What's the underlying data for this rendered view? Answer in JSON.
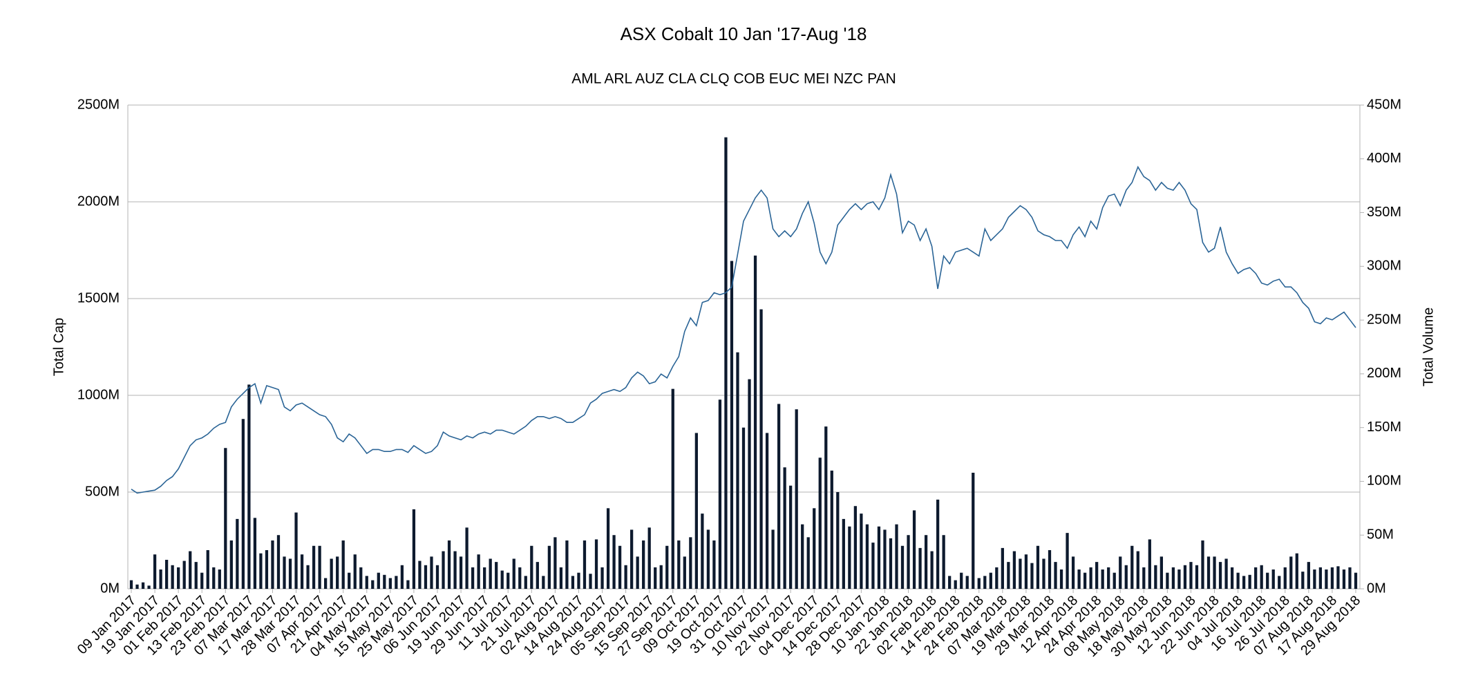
{
  "chart_data": {
    "type": "bar-line",
    "title": "ASX Cobalt 10 Jan '17-Aug '18",
    "subtitle": "AML ARL AUZ CLA CLQ COB EUC MEI NZC PAN",
    "ylabel": "Total Cap",
    "y2label": "Total Volume",
    "grid": true,
    "ylim": [
      0,
      2500
    ],
    "yticks": [
      {
        "value": 0,
        "label": "0M"
      },
      {
        "value": 500,
        "label": "500M"
      },
      {
        "value": 1000,
        "label": "1000M"
      },
      {
        "value": 1500,
        "label": "1500M"
      },
      {
        "value": 2000,
        "label": "2000M"
      },
      {
        "value": 2500,
        "label": "2500M"
      }
    ],
    "y2lim": [
      0,
      450
    ],
    "y2ticks": [
      {
        "value": 0,
        "label": "0M"
      },
      {
        "value": 50,
        "label": "50M"
      },
      {
        "value": 100,
        "label": "100M"
      },
      {
        "value": 150,
        "label": "150M"
      },
      {
        "value": 200,
        "label": "200M"
      },
      {
        "value": 250,
        "label": "250M"
      },
      {
        "value": 300,
        "label": "300M"
      },
      {
        "value": 350,
        "label": "350M"
      },
      {
        "value": 400,
        "label": "400M"
      },
      {
        "value": 450,
        "label": "450M"
      }
    ],
    "categories": [
      "09 Jan 2017",
      null,
      null,
      null,
      "19 Jan 2017",
      null,
      null,
      null,
      "01 Feb 2017",
      null,
      null,
      null,
      "13 Feb 2017",
      null,
      null,
      null,
      "23 Feb 2017",
      null,
      null,
      null,
      "07 Mar 2017",
      null,
      null,
      null,
      "17 Mar 2017",
      null,
      null,
      null,
      "28 Mar 2017",
      null,
      null,
      null,
      "07 Apr 2017",
      null,
      null,
      null,
      "21 Apr 2017",
      null,
      null,
      null,
      "04 May 2017",
      null,
      null,
      null,
      "15 May 2017",
      null,
      null,
      null,
      "25 May 2017",
      null,
      null,
      null,
      "06 Jun 2017",
      null,
      null,
      null,
      "19 Jun 2017",
      null,
      null,
      null,
      "29 Jun 2017",
      null,
      null,
      null,
      "11 Jul 2017",
      null,
      null,
      null,
      "21 Jul 2017",
      null,
      null,
      null,
      "02 Aug 2017",
      null,
      null,
      null,
      "14 Aug 2017",
      null,
      null,
      null,
      "24 Aug 2017",
      null,
      null,
      null,
      "05 Sep 2017",
      null,
      null,
      null,
      "15 Sep 2017",
      null,
      null,
      null,
      "27 Sep 2017",
      null,
      null,
      null,
      "09 Oct 2017",
      null,
      null,
      null,
      "19 Oct 2017",
      null,
      null,
      null,
      "31 Oct 2017",
      null,
      null,
      null,
      "10 Nov 2017",
      null,
      null,
      null,
      "22 Nov 2017",
      null,
      null,
      null,
      "04 Dec 2017",
      null,
      null,
      null,
      "14 Dec 2017",
      null,
      null,
      null,
      "28 Dec 2017",
      null,
      null,
      null,
      "10 Jan 2018",
      null,
      null,
      null,
      "22 Jan 2018",
      null,
      null,
      null,
      "02 Feb 2018",
      null,
      null,
      null,
      "14 Feb 2018",
      null,
      null,
      null,
      "24 Feb 2018",
      null,
      null,
      null,
      "07 Mar 2018",
      null,
      null,
      null,
      "19 Mar 2018",
      null,
      null,
      null,
      "29 Mar 2018",
      null,
      null,
      null,
      "12 Apr 2018",
      null,
      null,
      null,
      "24 Apr 2018",
      null,
      null,
      null,
      "08 May 2018",
      null,
      null,
      null,
      "18 May 2018",
      null,
      null,
      null,
      "30 May 2018",
      null,
      null,
      null,
      "12 Jun 2018",
      null,
      null,
      null,
      "22 Jun 2018",
      null,
      null,
      null,
      "04 Jul 2018",
      null,
      null,
      null,
      "16 Jul 2018",
      null,
      null,
      null,
      "26 Jul 2018",
      null,
      null,
      null,
      "07 Aug 2018",
      null,
      null,
      null,
      "17 Aug 2018",
      null,
      null,
      null,
      "29 Aug 2018"
    ],
    "series": [
      {
        "type": "bar",
        "axis": "y2",
        "color": "#0d1a2e",
        "values": [
          8,
          4,
          6,
          3,
          32,
          18,
          27,
          22,
          20,
          26,
          35,
          25,
          15,
          36,
          20,
          18,
          131,
          45,
          65,
          158,
          190,
          66,
          33,
          36,
          45,
          50,
          30,
          28,
          71,
          32,
          22,
          40,
          40,
          10,
          28,
          30,
          45,
          15,
          32,
          20,
          12,
          8,
          15,
          13,
          10,
          12,
          22,
          8,
          74,
          26,
          22,
          30,
          22,
          35,
          45,
          35,
          30,
          57,
          20,
          32,
          20,
          28,
          25,
          17,
          15,
          28,
          20,
          12,
          40,
          25,
          12,
          40,
          48,
          20,
          45,
          12,
          15,
          45,
          14,
          46,
          20,
          75,
          50,
          40,
          22,
          55,
          30,
          45,
          57,
          20,
          22,
          40,
          186,
          45,
          30,
          48,
          145,
          70,
          55,
          45,
          176,
          420,
          305,
          220,
          150,
          195,
          310,
          260,
          145,
          55,
          172,
          113,
          96,
          167,
          60,
          48,
          75,
          122,
          151,
          110,
          90,
          65,
          58,
          77,
          70,
          60,
          43,
          58,
          55,
          47,
          60,
          40,
          50,
          73,
          38,
          50,
          35,
          83,
          50,
          12,
          8,
          15,
          12,
          108,
          10,
          12,
          15,
          20,
          38,
          25,
          35,
          28,
          32,
          24,
          40,
          28,
          36,
          25,
          18,
          52,
          30,
          18,
          15,
          20,
          25,
          18,
          20,
          15,
          30,
          22,
          40,
          35,
          20,
          46,
          22,
          30,
          15,
          20,
          18,
          22,
          25,
          22,
          45,
          30,
          30,
          25,
          28,
          20,
          15,
          12,
          13,
          20,
          22,
          15,
          18,
          12,
          20,
          30,
          33,
          16,
          25,
          18,
          20,
          18,
          20,
          21,
          18,
          20,
          15
        ]
      },
      {
        "type": "line",
        "axis": "y",
        "color": "#2a6496",
        "values": [
          515,
          495,
          500,
          505,
          510,
          530,
          560,
          580,
          620,
          680,
          740,
          770,
          780,
          800,
          830,
          850,
          860,
          940,
          980,
          1010,
          1040,
          1060,
          960,
          1050,
          1040,
          1030,
          940,
          920,
          950,
          960,
          940,
          920,
          900,
          890,
          850,
          780,
          760,
          800,
          780,
          740,
          700,
          720,
          720,
          710,
          710,
          720,
          720,
          705,
          740,
          720,
          700,
          710,
          740,
          810,
          790,
          780,
          770,
          790,
          780,
          800,
          810,
          800,
          820,
          820,
          810,
          800,
          820,
          840,
          870,
          890,
          890,
          880,
          890,
          880,
          860,
          860,
          880,
          900,
          960,
          980,
          1010,
          1020,
          1030,
          1020,
          1040,
          1090,
          1120,
          1100,
          1060,
          1070,
          1110,
          1090,
          1150,
          1200,
          1330,
          1400,
          1360,
          1480,
          1490,
          1530,
          1520,
          1530,
          1560,
          1730,
          1900,
          1960,
          2020,
          2060,
          2020,
          1860,
          1820,
          1850,
          1820,
          1860,
          1940,
          2000,
          1890,
          1740,
          1680,
          1740,
          1880,
          1920,
          1960,
          1990,
          1960,
          1990,
          2000,
          1960,
          2020,
          2140,
          2040,
          1840,
          1900,
          1880,
          1800,
          1860,
          1770,
          1550,
          1720,
          1680,
          1740,
          1750,
          1760,
          1740,
          1720,
          1860,
          1800,
          1830,
          1860,
          1920,
          1950,
          1980,
          1960,
          1920,
          1850,
          1830,
          1820,
          1800,
          1800,
          1760,
          1830,
          1870,
          1820,
          1900,
          1860,
          1970,
          2030,
          2040,
          1980,
          2060,
          2100,
          2180,
          2130,
          2110,
          2060,
          2100,
          2070,
          2060,
          2100,
          2060,
          1990,
          1960,
          1790,
          1740,
          1760,
          1870,
          1740,
          1680,
          1630,
          1650,
          1660,
          1630,
          1580,
          1570,
          1590,
          1600,
          1560,
          1560,
          1530,
          1480,
          1450,
          1380,
          1370,
          1400,
          1390,
          1410,
          1430,
          1390,
          1350
        ]
      }
    ]
  }
}
